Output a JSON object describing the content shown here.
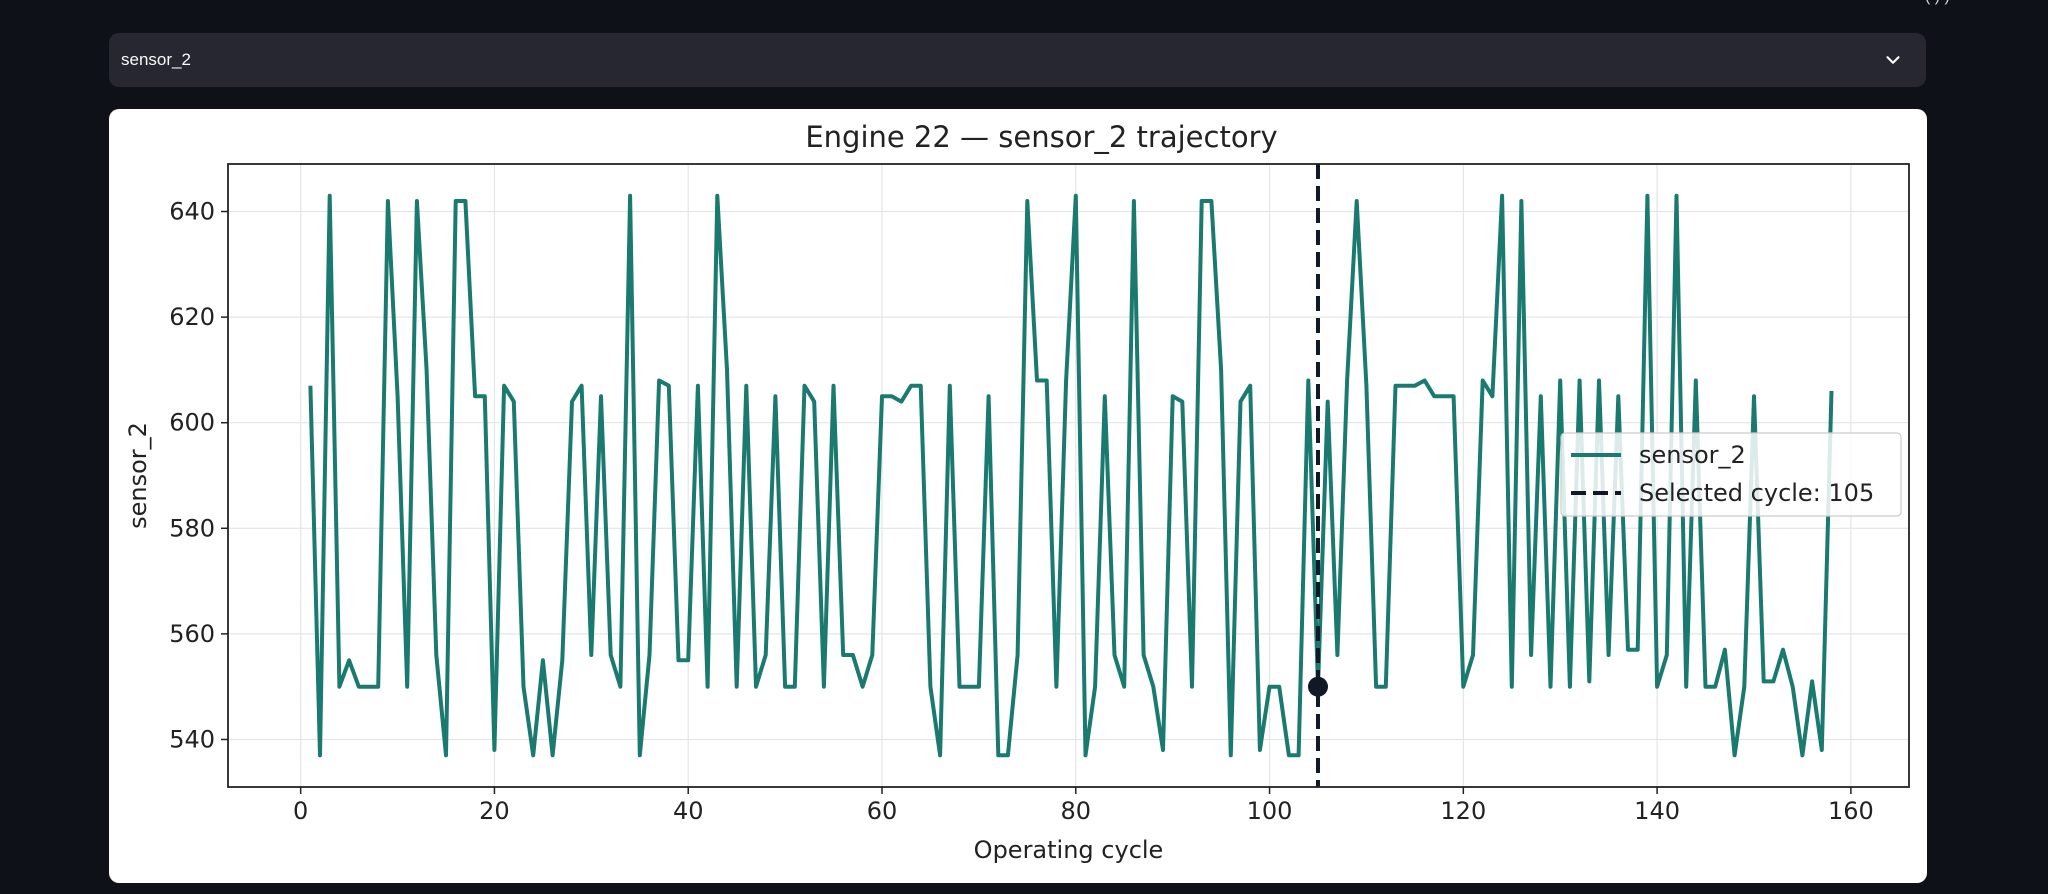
{
  "selector": {
    "value": "sensor_2",
    "icon": "chevron-down-icon"
  },
  "top_fragment": "( ) )",
  "chart_data": {
    "type": "line",
    "title": "Engine 22 — sensor_2 trajectory",
    "xlabel": "Operating cycle",
    "ylabel": "sensor_2",
    "xlim": [
      -7.5,
      166
    ],
    "ylim": [
      531,
      649
    ],
    "xticks": [
      0,
      20,
      40,
      60,
      80,
      100,
      120,
      140,
      160
    ],
    "yticks": [
      540,
      560,
      580,
      600,
      620,
      640
    ],
    "grid": true,
    "legend_position": "center-right",
    "series": [
      {
        "name": "sensor_2",
        "color": "#1a7a70",
        "x": [
          1,
          2,
          3,
          4,
          5,
          6,
          7,
          8,
          9,
          10,
          11,
          12,
          13,
          14,
          15,
          16,
          17,
          18,
          19,
          20,
          21,
          22,
          23,
          24,
          25,
          26,
          27,
          28,
          29,
          30,
          31,
          32,
          33,
          34,
          35,
          36,
          37,
          38,
          39,
          40,
          41,
          42,
          43,
          44,
          45,
          46,
          47,
          48,
          49,
          50,
          51,
          52,
          53,
          54,
          55,
          56,
          57,
          58,
          59,
          60,
          61,
          62,
          63,
          64,
          65,
          66,
          67,
          68,
          69,
          70,
          71,
          72,
          73,
          74,
          75,
          76,
          77,
          78,
          79,
          80,
          81,
          82,
          83,
          84,
          85,
          86,
          87,
          88,
          89,
          90,
          91,
          92,
          93,
          94,
          95,
          96,
          97,
          98,
          99,
          100,
          101,
          102,
          103,
          104,
          105,
          106,
          107,
          108,
          109,
          110,
          111,
          112,
          113,
          114,
          115,
          116,
          117,
          118,
          119,
          120,
          121,
          122,
          123,
          124,
          125,
          126,
          127,
          128,
          129,
          130,
          131,
          132,
          133,
          134,
          135,
          136,
          137,
          138,
          139,
          140,
          141,
          142,
          143,
          144,
          145,
          146,
          147,
          148,
          149,
          150,
          151,
          152,
          153,
          154,
          155,
          156,
          157,
          158
        ],
        "y": [
          607,
          537,
          643,
          550,
          555,
          550,
          550,
          550,
          642,
          605,
          550,
          642,
          610,
          556,
          537,
          642,
          642,
          605,
          605,
          538,
          607,
          604,
          550,
          537,
          555,
          537,
          555,
          604,
          607,
          556,
          605,
          556,
          550,
          643,
          537,
          556,
          608,
          607,
          555,
          555,
          607,
          550,
          643,
          610,
          550,
          607,
          550,
          556,
          605,
          550,
          550,
          607,
          604,
          550,
          607,
          556,
          556,
          550,
          556,
          605,
          605,
          604,
          607,
          607,
          550,
          537,
          607,
          550,
          550,
          550,
          605,
          537,
          537,
          556,
          642,
          608,
          608,
          550,
          608,
          643,
          537,
          550,
          605,
          556,
          550,
          642,
          556,
          550,
          538,
          605,
          604,
          550,
          642,
          642,
          610,
          537,
          604,
          607,
          538,
          550,
          550,
          537,
          537,
          608,
          550,
          604,
          556,
          608,
          642,
          607,
          550,
          550,
          607,
          607,
          607,
          608,
          605,
          605,
          605,
          550,
          556,
          608,
          605,
          643,
          550,
          642,
          556,
          605,
          550,
          608,
          550,
          608,
          551,
          608,
          556,
          605,
          557,
          557,
          643,
          550,
          556,
          643,
          550,
          608,
          550,
          550,
          557,
          537,
          550,
          605,
          551,
          551,
          557,
          550,
          537,
          551,
          538,
          606
        ]
      }
    ],
    "marker": {
      "x": 105,
      "y": 550,
      "color": "#111827"
    },
    "vline": {
      "x": 105,
      "label": "Selected cycle: 105",
      "color": "#111827"
    }
  }
}
